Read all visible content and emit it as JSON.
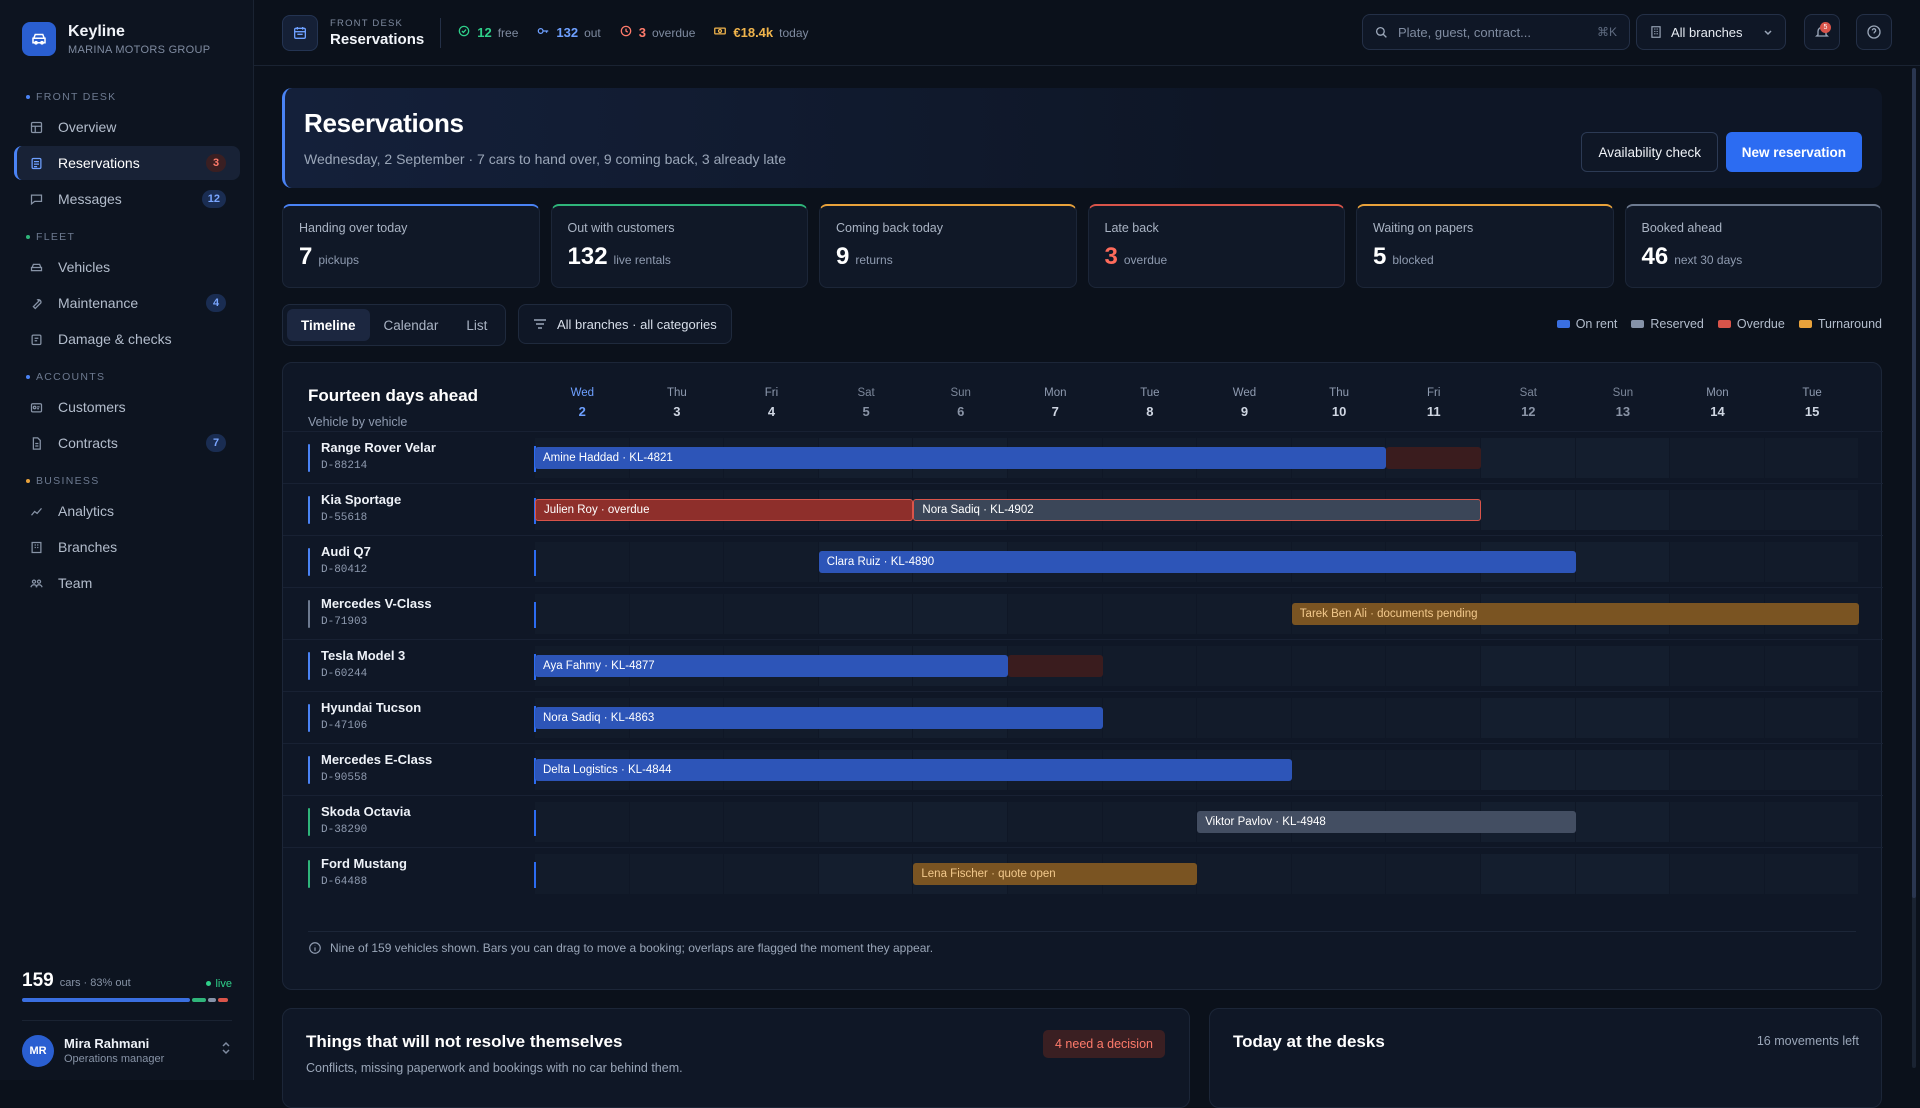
{
  "brand": {
    "name": "Keyline",
    "subtitle": "MARINA MOTORS GROUP"
  },
  "sidebar": {
    "sections": [
      {
        "label": "FRONT DESK",
        "items": [
          {
            "label": "Overview",
            "icon": "layout-icon"
          },
          {
            "label": "Reservations",
            "icon": "calendar-list-icon",
            "badge": "3",
            "badge_color": "red",
            "active": true
          },
          {
            "label": "Messages",
            "icon": "chat-icon",
            "badge": "12",
            "badge_color": "blue"
          }
        ]
      },
      {
        "label": "FLEET",
        "items": [
          {
            "label": "Vehicles",
            "icon": "car-icon"
          },
          {
            "label": "Maintenance",
            "icon": "wrench-icon",
            "badge": "4",
            "badge_color": "blue"
          },
          {
            "label": "Damage & checks",
            "icon": "clipboard-icon"
          }
        ]
      },
      {
        "label": "ACCOUNTS",
        "items": [
          {
            "label": "Customers",
            "icon": "id-card-icon"
          },
          {
            "label": "Contracts",
            "icon": "document-icon",
            "badge": "7",
            "badge_color": "blue"
          }
        ]
      },
      {
        "label": "BUSINESS",
        "items": [
          {
            "label": "Analytics",
            "icon": "trend-icon"
          },
          {
            "label": "Branches",
            "icon": "building-icon"
          },
          {
            "label": "Team",
            "icon": "team-icon"
          }
        ]
      }
    ],
    "fleet": {
      "count": "159",
      "summary": "cars · 83% out",
      "live": "live"
    },
    "user": {
      "initials": "MR",
      "name": "Mira Rahmani",
      "role": "Operations manager"
    }
  },
  "topbar": {
    "kicker": "FRONT DESK",
    "title": "Reservations",
    "stats": [
      {
        "value": "12",
        "unit": "free",
        "color": "#2fd08a",
        "icon": "check-circle-icon"
      },
      {
        "value": "132",
        "unit": "out",
        "color": "#6ea0ff",
        "icon": "key-icon"
      },
      {
        "value": "3",
        "unit": "overdue",
        "color": "#ff7b6b",
        "icon": "clock-alert-icon"
      },
      {
        "value": "€18.4k",
        "unit": "today",
        "color": "#f0b44c",
        "icon": "cash-icon"
      }
    ],
    "search_placeholder": "Plate, guest, contract...",
    "search_kbd": "⌘K",
    "branch": "All branches",
    "notif_count": "5"
  },
  "hero": {
    "title": "Reservations",
    "subtitle": "Wednesday, 2 September · 7 cars to hand over, 9 coming back, 3 already late",
    "secondary_button": "Availability check",
    "primary_button": "New reservation"
  },
  "kpis": [
    {
      "label": "Handing over today",
      "value": "7",
      "unit": "pickups",
      "accent": "#4a83f5",
      "value_color": "#ffffff"
    },
    {
      "label": "Out with customers",
      "value": "132",
      "unit": "live rentals",
      "accent": "#2fb57a",
      "value_color": "#ffffff"
    },
    {
      "label": "Coming back today",
      "value": "9",
      "unit": "returns",
      "accent": "#e9a23b",
      "value_color": "#ffffff"
    },
    {
      "label": "Late back",
      "value": "3",
      "unit": "overdue",
      "accent": "#d9544a",
      "value_color": "#ff6b5b"
    },
    {
      "label": "Waiting on papers",
      "value": "5",
      "unit": "blocked",
      "accent": "#e9a23b",
      "value_color": "#ffffff"
    },
    {
      "label": "Booked ahead",
      "value": "46",
      "unit": "next 30 days",
      "accent": "#6d7a90",
      "value_color": "#ffffff"
    }
  ],
  "view_tabs": [
    "Timeline",
    "Calendar",
    "List"
  ],
  "filter_label": "All branches · all categories",
  "legend": [
    {
      "label": "On rent",
      "color": "#3a6fe0"
    },
    {
      "label": "Reserved",
      "color": "#8592a8"
    },
    {
      "label": "Overdue",
      "color": "#d9544a"
    },
    {
      "label": "Turnaround",
      "color": "#e9a23b"
    }
  ],
  "timeline": {
    "title": "Fourteen days ahead",
    "subtitle": "Vehicle by vehicle",
    "days": [
      {
        "name": "Wed",
        "date": "2",
        "today": true
      },
      {
        "name": "Thu",
        "date": "3"
      },
      {
        "name": "Fri",
        "date": "4"
      },
      {
        "name": "Sat",
        "date": "5",
        "weekend": true
      },
      {
        "name": "Sun",
        "date": "6",
        "weekend": true
      },
      {
        "name": "Mon",
        "date": "7"
      },
      {
        "name": "Tue",
        "date": "8"
      },
      {
        "name": "Wed",
        "date": "9"
      },
      {
        "name": "Thu",
        "date": "10"
      },
      {
        "name": "Fri",
        "date": "11"
      },
      {
        "name": "Sat",
        "date": "12",
        "weekend": true
      },
      {
        "name": "Sun",
        "date": "13",
        "weekend": true
      },
      {
        "name": "Mon",
        "date": "14"
      },
      {
        "name": "Tue",
        "date": "15"
      }
    ],
    "vehicles": [
      {
        "car": "Range Rover Velar",
        "plate": "D-88214",
        "stripe": "#4a83f5",
        "bookings": [
          {
            "label": "Amine Haddad · KL-4821",
            "start": 0,
            "end": 9,
            "kind": "rent"
          },
          {
            "label": "",
            "start": 9,
            "end": 10,
            "kind": "ghost"
          }
        ]
      },
      {
        "car": "Kia Sportage",
        "plate": "D-55618",
        "stripe": "#4a83f5",
        "bookings": [
          {
            "label": "Julien Roy · overdue",
            "start": 0,
            "end": 4,
            "kind": "over"
          },
          {
            "label": "Nora Sadiq · KL-4902",
            "start": 4,
            "end": 10,
            "kind": "res"
          }
        ]
      },
      {
        "car": "Audi Q7",
        "plate": "D-80412",
        "stripe": "#4a83f5",
        "bookings": [
          {
            "label": "Clara Ruiz · KL-4890",
            "start": 3,
            "end": 11,
            "kind": "rent"
          }
        ]
      },
      {
        "car": "Mercedes V-Class",
        "plate": "D-71903",
        "stripe": "#6d7a90",
        "bookings": [
          {
            "label": "Tarek Ben Ali · documents pending",
            "start": 8,
            "end": 14,
            "kind": "turn"
          }
        ]
      },
      {
        "car": "Tesla Model 3",
        "plate": "D-60244",
        "stripe": "#4a83f5",
        "bookings": [
          {
            "label": "Aya Fahmy · KL-4877",
            "start": 0,
            "end": 5,
            "kind": "rent"
          },
          {
            "label": "",
            "start": 5,
            "end": 6,
            "kind": "ghost"
          }
        ]
      },
      {
        "car": "Hyundai Tucson",
        "plate": "D-47106",
        "stripe": "#4a83f5",
        "bookings": [
          {
            "label": "Nora Sadiq · KL-4863",
            "start": 0,
            "end": 6,
            "kind": "rent"
          }
        ]
      },
      {
        "car": "Mercedes E-Class",
        "plate": "D-90558",
        "stripe": "#4a83f5",
        "bookings": [
          {
            "label": "Delta Logistics · KL-4844",
            "start": 0,
            "end": 8,
            "kind": "rent"
          }
        ]
      },
      {
        "car": "Skoda Octavia",
        "plate": "D-38290",
        "stripe": "#2fb57a",
        "bookings": [
          {
            "label": "Viktor Pavlov · KL-4948",
            "start": 7,
            "end": 11,
            "kind": "res-plain"
          }
        ]
      },
      {
        "car": "Ford Mustang",
        "plate": "D-64488",
        "stripe": "#2fb57a",
        "bookings": [
          {
            "label": "Lena Fischer · quote open",
            "start": 4,
            "end": 7,
            "kind": "turn"
          }
        ]
      }
    ],
    "note": "Nine of 159 vehicles shown. Bars you can drag to move a booking; overlaps are flagged the moment they appear."
  },
  "cards": {
    "issues": {
      "title": "Things that will not resolve themselves",
      "subtitle": "Conflicts, missing paperwork and bookings with no car behind them.",
      "pill": "4 need a decision"
    },
    "desks": {
      "title": "Today at the desks",
      "meta": "16 movements left"
    }
  }
}
